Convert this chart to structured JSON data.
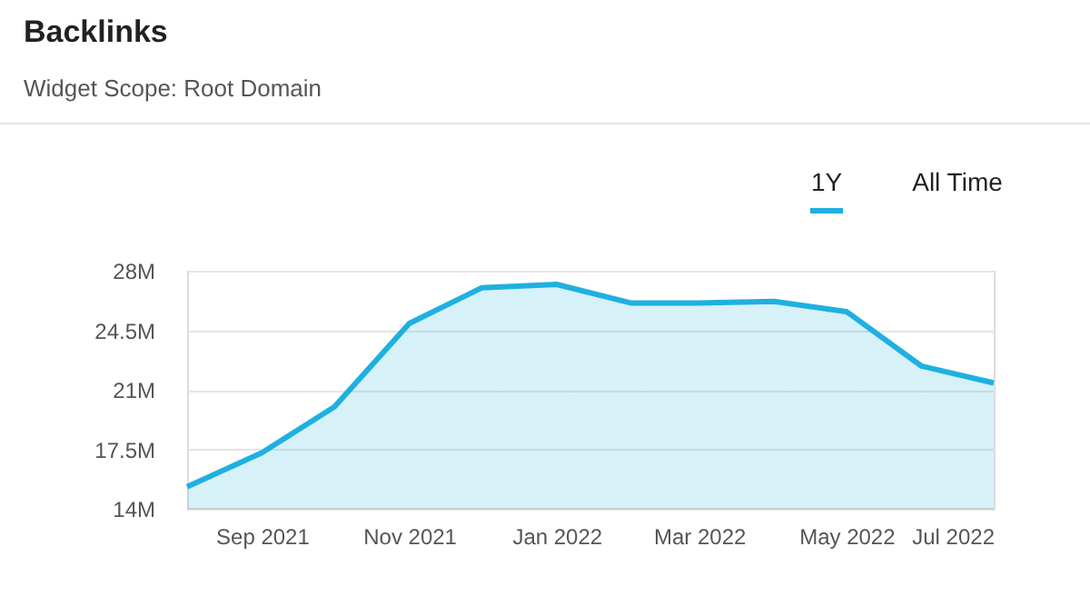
{
  "chart_data": {
    "type": "area",
    "title": "Backlinks",
    "subtitle": "Widget Scope: Root Domain",
    "annotations": [
      "1Y",
      "All Time"
    ],
    "x": [
      "2021-08-01",
      "2021-09-01",
      "2021-10-01",
      "2021-11-01",
      "2021-12-01",
      "2022-01-01",
      "2022-02-01",
      "2022-03-01",
      "2022-04-01",
      "2022-05-01",
      "2022-06-01",
      "2022-07-01"
    ],
    "series": [
      {
        "color": "#1fb0e0",
        "values": [
          15.3,
          17.3,
          20.0,
          24.9,
          27.0,
          27.2,
          26.1,
          26.1,
          26.2,
          25.6,
          22.4,
          21.4
        ]
      }
    ],
    "xlim": [
      "2021-08-01",
      "2022-07-01"
    ],
    "xticks": [
      {
        "value": "2021-09-01",
        "label": "Sep 2021"
      },
      {
        "value": "2021-11-01",
        "label": "Nov 2021"
      },
      {
        "value": "2022-01-01",
        "label": "Jan 2022"
      },
      {
        "value": "2022-03-01",
        "label": "Mar 2022"
      },
      {
        "value": "2022-05-01",
        "label": "May 2022"
      },
      {
        "value": "2022-07-01",
        "label": "Jul 2022"
      }
    ],
    "ylim": [
      14,
      28
    ],
    "yticks": [
      {
        "value": 14,
        "label": "14M"
      },
      {
        "value": 17.5,
        "label": "17.5M"
      },
      {
        "value": 21,
        "label": "21M"
      },
      {
        "value": 24.5,
        "label": "24.5M"
      },
      {
        "value": 28,
        "label": "28M"
      }
    ],
    "grid": "y"
  }
}
